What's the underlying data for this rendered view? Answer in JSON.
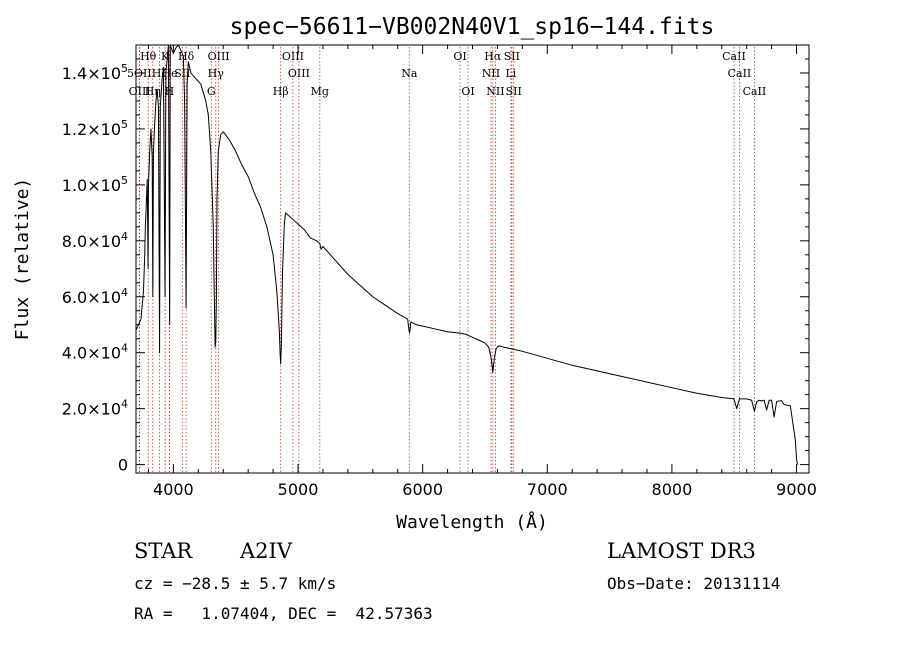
{
  "chart_data": {
    "type": "line",
    "title": "spec−56611−VB002N40V1_sp16−144.fits",
    "xlabel": "Wavelength (Å)",
    "ylabel": "Flux (relative)",
    "xlim": [
      3700,
      9100
    ],
    "ylim": [
      -3000,
      150000
    ],
    "x_ticks": [
      {
        "value": 4000,
        "label": "4000"
      },
      {
        "value": 5000,
        "label": "5000"
      },
      {
        "value": 6000,
        "label": "6000"
      },
      {
        "value": 7000,
        "label": "7000"
      },
      {
        "value": 8000,
        "label": "8000"
      },
      {
        "value": 9000,
        "label": "9000"
      }
    ],
    "y_ticks": [
      {
        "value": 0,
        "label": "0"
      },
      {
        "value": 20000,
        "mant": "2.0",
        "exp": "4"
      },
      {
        "value": 40000,
        "mant": "4.0",
        "exp": "4"
      },
      {
        "value": 60000,
        "mant": "6.0",
        "exp": "4"
      },
      {
        "value": 80000,
        "mant": "8.0",
        "exp": "4"
      },
      {
        "value": 100000,
        "mant": "1.0",
        "exp": "5"
      },
      {
        "value": 120000,
        "mant": "1.2",
        "exp": "5"
      },
      {
        "value": 140000,
        "mant": "1.4",
        "exp": "5"
      }
    ],
    "series": [
      {
        "name": "spectrum",
        "color": "#000000",
        "x": [
          3700,
          3720,
          3740,
          3760,
          3770,
          3775,
          3780,
          3790,
          3797,
          3800,
          3810,
          3820,
          3830,
          3835,
          3840,
          3850,
          3860,
          3870,
          3880,
          3889,
          3895,
          3910,
          3920,
          3933,
          3940,
          3950,
          3960,
          3970,
          3975,
          3990,
          4000,
          4020,
          4040,
          4060,
          4080,
          4090,
          4102,
          4110,
          4120,
          4140,
          4160,
          4180,
          4200,
          4220,
          4240,
          4260,
          4280,
          4300,
          4320,
          4330,
          4335,
          4340,
          4345,
          4350,
          4360,
          4380,
          4400,
          4450,
          4500,
          4550,
          4600,
          4650,
          4700,
          4750,
          4800,
          4830,
          4850,
          4856,
          4861,
          4866,
          4875,
          4890,
          4900,
          4950,
          5000,
          5050,
          5100,
          5150,
          5175,
          5185,
          5200,
          5300,
          5400,
          5500,
          5600,
          5700,
          5800,
          5880,
          5890,
          5896,
          5905,
          5950,
          6000,
          6100,
          6200,
          6300,
          6350,
          6400,
          6450,
          6500,
          6530,
          6550,
          6563,
          6575,
          6590,
          6610,
          6650,
          6700,
          6800,
          7000,
          7200,
          7400,
          7600,
          7800,
          8000,
          8200,
          8400,
          8498,
          8520,
          8542,
          8560,
          8600,
          8640,
          8662,
          8680,
          8700,
          8720,
          8740,
          8760,
          8780,
          8800,
          8820,
          8840,
          8860,
          8880,
          8900,
          8950,
          8990,
          9000,
          9005,
          9010
        ],
        "y": [
          48000,
          50000,
          52000,
          62000,
          75000,
          85000,
          90000,
          102000,
          70000,
          100000,
          112000,
          120000,
          110000,
          60000,
          112000,
          122000,
          130000,
          134000,
          128000,
          40000,
          128000,
          138000,
          142000,
          60000,
          140000,
          145000,
          150000,
          50000,
          150000,
          148000,
          147000,
          149000,
          150000,
          148000,
          146000,
          130000,
          56000,
          136000,
          144000,
          140000,
          139000,
          138000,
          137000,
          136000,
          133000,
          130000,
          125000,
          112000,
          85000,
          55000,
          42000,
          44000,
          60000,
          95000,
          112000,
          118000,
          119000,
          116000,
          112000,
          107000,
          103000,
          97000,
          92000,
          85000,
          75000,
          62000,
          48000,
          40000,
          36000,
          42000,
          68000,
          86000,
          90000,
          88000,
          86000,
          84000,
          81000,
          80000,
          79000,
          77000,
          78000,
          73000,
          68000,
          64000,
          60000,
          57000,
          54000,
          52000,
          48000,
          47000,
          51000,
          50000,
          49500,
          48500,
          47500,
          47000,
          46500,
          45500,
          44500,
          43500,
          42000,
          38000,
          33000,
          38000,
          41500,
          42500,
          42000,
          41500,
          40500,
          38000,
          35500,
          33500,
          31500,
          29500,
          27500,
          25500,
          24000,
          23500,
          20000,
          23500,
          23500,
          23500,
          23000,
          19000,
          22500,
          23000,
          22800,
          23000,
          19500,
          23000,
          23000,
          17000,
          22500,
          22800,
          22800,
          21500,
          21000,
          9000,
          2000,
          500,
          0
        ]
      }
    ],
    "line_markers": [
      {
        "label": "Hθ",
        "wl": 3798,
        "row": 0
      },
      {
        "label": "K",
        "wl": 3934,
        "row": 0
      },
      {
        "label": "Hδ",
        "wl": 4102,
        "row": 0
      },
      {
        "label": "OIII",
        "wl": 4363,
        "row": 0
      },
      {
        "label": "OIII",
        "wl": 4959,
        "row": 0
      },
      {
        "label": "OI",
        "wl": 6300,
        "row": 0
      },
      {
        "label": "Hα",
        "wl": 6563,
        "row": 0
      },
      {
        "label": "SII",
        "wl": 6716,
        "row": 0
      },
      {
        "label": "CaII",
        "wl": 8498,
        "row": 0
      },
      {
        "label": "5OII",
        "wl": 3727,
        "row": 1
      },
      {
        "label": "Hζ",
        "wl": 3889,
        "row": 1
      },
      {
        "label": "He",
        "wl": 3970,
        "row": 1
      },
      {
        "label": "SII",
        "wl": 4072,
        "row": 1
      },
      {
        "label": "Hγ",
        "wl": 4340,
        "row": 1
      },
      {
        "label": "OIII",
        "wl": 5007,
        "row": 1
      },
      {
        "label": "Na",
        "wl": 5893,
        "row": 1
      },
      {
        "label": "NII",
        "wl": 6548,
        "row": 1
      },
      {
        "label": "Li",
        "wl": 6708,
        "row": 1
      },
      {
        "label": "CaII",
        "wl": 8542,
        "row": 1
      },
      {
        "label": "OIII",
        "wl": 3729,
        "row": 2
      },
      {
        "label": "Hη",
        "wl": 3835,
        "row": 2
      },
      {
        "label": "H",
        "wl": 3968,
        "row": 2
      },
      {
        "label": "G",
        "wl": 4304,
        "row": 2
      },
      {
        "label": "Hβ",
        "wl": 4861,
        "row": 2
      },
      {
        "label": "Mg",
        "wl": 5175,
        "row": 2
      },
      {
        "label": "OI",
        "wl": 6364,
        "row": 2
      },
      {
        "label": "NII",
        "wl": 6584,
        "row": 2
      },
      {
        "label": "SII",
        "wl": 6731,
        "row": 2
      },
      {
        "label": "CaII",
        "wl": 8662,
        "row": 2
      }
    ]
  },
  "info": {
    "object_class": "STAR",
    "subclass": "A2IV",
    "survey": "LAMOST DR3",
    "cz": "cz = −28.5 ± 5.7 km/s",
    "obs_date": "Obs−Date: 20131114",
    "coords": "RA =   1.07404, DEC =  42.57363"
  }
}
